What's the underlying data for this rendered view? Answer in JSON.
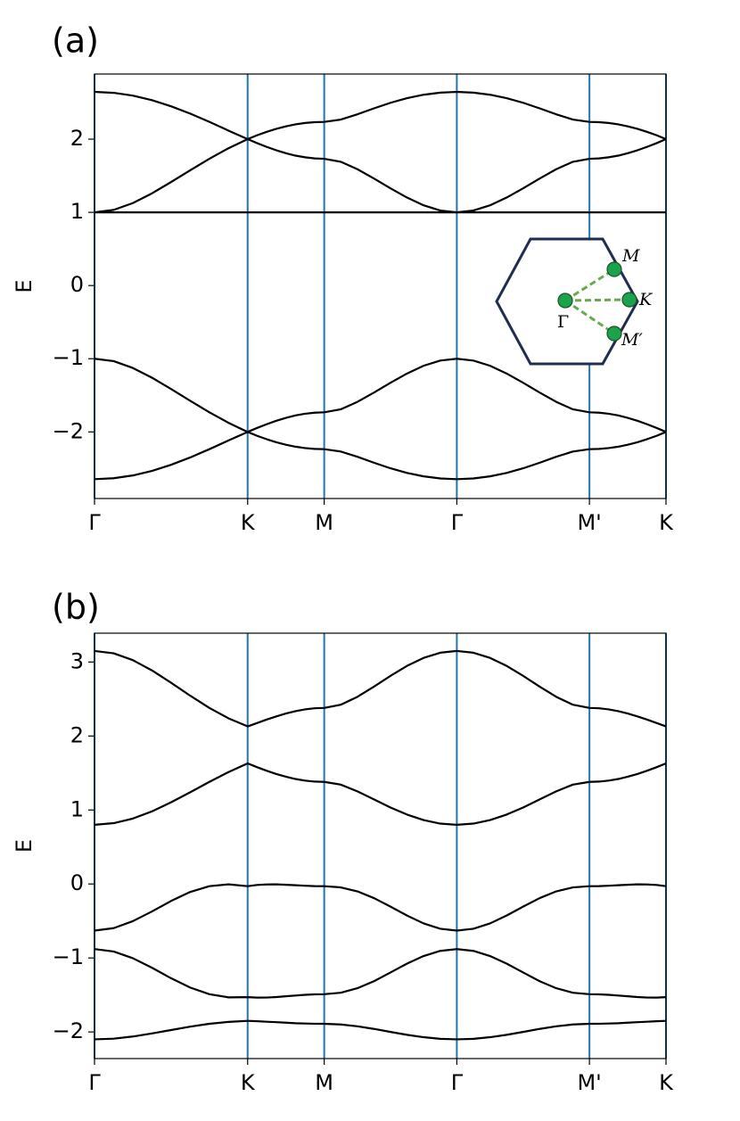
{
  "chart_data": [
    {
      "type": "line",
      "panel_label": "(a)",
      "ylabel": "E",
      "x": [
        0,
        0.125,
        0.25,
        0.375,
        0.5,
        0.625,
        0.75,
        0.875,
        1,
        1.0625,
        1.125,
        1.1875,
        1.25,
        1.3125,
        1.375,
        1.4375,
        1.5,
        1.608,
        1.717,
        1.825,
        1.933,
        2.041,
        2.149,
        2.258,
        2.366,
        2.474,
        2.583,
        2.691,
        2.799,
        2.907,
        3.015,
        3.124,
        3.232,
        3.295,
        3.357,
        3.42,
        3.482,
        3.545,
        3.607,
        3.67,
        3.732
      ],
      "series": [
        {
          "color": "#000000",
          "values": [
            2.646,
            2.633,
            2.595,
            2.533,
            2.449,
            2.349,
            2.236,
            2.117,
            2,
            2.054,
            2.1,
            2.141,
            2.175,
            2.202,
            2.221,
            2.232,
            2.236,
            2.268,
            2.34,
            2.421,
            2.497,
            2.56,
            2.607,
            2.636,
            2.646,
            2.636,
            2.607,
            2.56,
            2.497,
            2.421,
            2.34,
            2.268,
            2.236,
            2.232,
            2.221,
            2.202,
            2.175,
            2.141,
            2.1,
            2.054,
            2
          ]
        },
        {
          "color": "#000000",
          "values": [
            1,
            1.033,
            1.126,
            1.259,
            1.414,
            1.575,
            1.732,
            1.876,
            2,
            1.945,
            1.894,
            1.848,
            1.808,
            1.775,
            1.752,
            1.737,
            1.732,
            1.691,
            1.589,
            1.462,
            1.328,
            1.202,
            1.096,
            1.025,
            1,
            1.025,
            1.096,
            1.202,
            1.328,
            1.462,
            1.589,
            1.691,
            1.732,
            1.737,
            1.752,
            1.775,
            1.808,
            1.848,
            1.894,
            1.945,
            2
          ]
        },
        {
          "color": "#000000",
          "values": [
            1,
            1,
            1,
            1,
            1,
            1,
            1,
            1,
            1,
            1,
            1,
            1,
            1,
            1,
            1,
            1,
            1,
            1,
            1,
            1,
            1,
            1,
            1,
            1,
            1,
            1,
            1,
            1,
            1,
            1,
            1,
            1,
            1,
            1,
            1,
            1,
            1,
            1,
            1,
            1,
            1
          ]
        },
        {
          "color": "#000000",
          "values": [
            -1,
            -1.033,
            -1.126,
            -1.259,
            -1.414,
            -1.575,
            -1.732,
            -1.876,
            -2,
            -1.945,
            -1.894,
            -1.848,
            -1.808,
            -1.775,
            -1.752,
            -1.737,
            -1.732,
            -1.691,
            -1.589,
            -1.462,
            -1.328,
            -1.202,
            -1.096,
            -1.025,
            -1,
            -1.025,
            -1.096,
            -1.202,
            -1.328,
            -1.462,
            -1.589,
            -1.691,
            -1.732,
            -1.737,
            -1.752,
            -1.775,
            -1.808,
            -1.848,
            -1.894,
            -1.945,
            -2
          ]
        },
        {
          "color": "#000000",
          "values": [
            -2.646,
            -2.633,
            -2.595,
            -2.533,
            -2.449,
            -2.349,
            -2.236,
            -2.117,
            -2,
            -2.054,
            -2.1,
            -2.141,
            -2.175,
            -2.202,
            -2.221,
            -2.232,
            -2.236,
            -2.268,
            -2.34,
            -2.421,
            -2.497,
            -2.56,
            -2.607,
            -2.636,
            -2.646,
            -2.636,
            -2.607,
            -2.56,
            -2.497,
            -2.421,
            -2.34,
            -2.268,
            -2.236,
            -2.232,
            -2.221,
            -2.202,
            -2.175,
            -2.141,
            -2.1,
            -2.054,
            -2
          ]
        }
      ],
      "xlim": [
        0,
        3.732
      ],
      "xticks": [
        {
          "value": 0,
          "label": "Γ"
        },
        {
          "value": 1,
          "label": "K"
        },
        {
          "value": 1.5,
          "label": "M"
        },
        {
          "value": 2.366,
          "label": "Γ"
        },
        {
          "value": 3.232,
          "label": "M'"
        },
        {
          "value": 3.732,
          "label": "K"
        }
      ],
      "ylim": [
        -2.91,
        2.89
      ],
      "yticks": [
        {
          "value": -2,
          "label": "−2"
        },
        {
          "value": -1,
          "label": "−1"
        },
        0,
        1,
        2
      ],
      "xgrid": true,
      "grid_color": "#1f77b4",
      "inset": {
        "labels": [
          "M",
          "K",
          "Γ",
          "M′"
        ]
      }
    },
    {
      "type": "line",
      "panel_label": "(b)",
      "ylabel": "E",
      "x": [
        0,
        0.125,
        0.25,
        0.375,
        0.5,
        0.625,
        0.75,
        0.875,
        1,
        1.0625,
        1.125,
        1.1875,
        1.25,
        1.3125,
        1.375,
        1.4375,
        1.5,
        1.608,
        1.717,
        1.825,
        1.933,
        2.041,
        2.149,
        2.258,
        2.366,
        2.474,
        2.583,
        2.691,
        2.799,
        2.907,
        3.015,
        3.124,
        3.232,
        3.295,
        3.357,
        3.42,
        3.482,
        3.545,
        3.607,
        3.67,
        3.732
      ],
      "series": [
        {
          "color": "#000000",
          "values": [
            3.15,
            3.118,
            3.026,
            2.887,
            2.72,
            2.545,
            2.38,
            2.239,
            2.13,
            2.176,
            2.223,
            2.265,
            2.304,
            2.336,
            2.36,
            2.375,
            2.38,
            2.423,
            2.53,
            2.668,
            2.813,
            2.948,
            3.056,
            3.126,
            3.15,
            3.126,
            3.056,
            2.948,
            2.813,
            2.668,
            2.53,
            2.423,
            2.38,
            2.375,
            2.36,
            2.336,
            2.304,
            2.265,
            2.223,
            2.176,
            2.13
          ]
        },
        {
          "color": "#000000",
          "values": [
            0.8,
            0.822,
            0.884,
            0.981,
            1.104,
            1.24,
            1.38,
            1.513,
            1.63,
            1.578,
            1.53,
            1.486,
            1.45,
            1.419,
            1.397,
            1.384,
            1.38,
            1.343,
            1.252,
            1.143,
            1.034,
            0.938,
            0.864,
            0.816,
            0.8,
            0.816,
            0.864,
            0.938,
            1.034,
            1.143,
            1.252,
            1.343,
            1.38,
            1.384,
            1.397,
            1.419,
            1.45,
            1.486,
            1.53,
            1.578,
            1.63
          ]
        },
        {
          "color": "#000000",
          "values": [
            -0.63,
            -0.597,
            -0.503,
            -0.372,
            -0.23,
            -0.108,
            -0.03,
            -0.005,
            -0.03,
            -0.013,
            -0.006,
            -0.005,
            -0.011,
            -0.017,
            -0.024,
            -0.029,
            -0.03,
            -0.046,
            -0.1,
            -0.191,
            -0.306,
            -0.427,
            -0.533,
            -0.605,
            -0.63,
            -0.605,
            -0.533,
            -0.427,
            -0.306,
            -0.191,
            -0.1,
            -0.046,
            -0.03,
            -0.029,
            -0.024,
            -0.017,
            -0.011,
            -0.005,
            -0.006,
            -0.013,
            -0.03
          ]
        },
        {
          "color": "#000000",
          "values": [
            -0.88,
            -0.913,
            -1.003,
            -1.132,
            -1.274,
            -1.4,
            -1.49,
            -1.533,
            -1.53,
            -1.536,
            -1.535,
            -1.528,
            -1.518,
            -1.508,
            -1.498,
            -1.492,
            -1.49,
            -1.47,
            -1.409,
            -1.314,
            -1.196,
            -1.076,
            -0.974,
            -0.904,
            -0.88,
            -0.904,
            -0.974,
            -1.076,
            -1.196,
            -1.314,
            -1.409,
            -1.47,
            -1.49,
            -1.492,
            -1.498,
            -1.508,
            -1.518,
            -1.528,
            -1.535,
            -1.536,
            -1.53
          ]
        },
        {
          "color": "#000000",
          "values": [
            -2.1,
            -2.091,
            -2.062,
            -2.02,
            -1.974,
            -1.928,
            -1.89,
            -1.864,
            -1.85,
            -1.855,
            -1.862,
            -1.868,
            -1.875,
            -1.882,
            -1.886,
            -1.889,
            -1.89,
            -1.899,
            -1.924,
            -1.959,
            -2,
            -2.039,
            -2.071,
            -2.093,
            -2.1,
            -2.093,
            -2.071,
            -2.039,
            -2,
            -1.959,
            -1.924,
            -1.899,
            -1.89,
            -1.889,
            -1.886,
            -1.882,
            -1.875,
            -1.868,
            -1.862,
            -1.855,
            -1.85
          ]
        }
      ],
      "xlim": [
        0,
        3.732
      ],
      "xticks": [
        {
          "value": 0,
          "label": "Γ"
        },
        {
          "value": 1,
          "label": "K"
        },
        {
          "value": 1.5,
          "label": "M"
        },
        {
          "value": 2.366,
          "label": "Γ"
        },
        {
          "value": 3.232,
          "label": "M'"
        },
        {
          "value": 3.732,
          "label": "K"
        }
      ],
      "ylim": [
        -2.36,
        3.39
      ],
      "yticks": [
        {
          "value": -2,
          "label": "−2"
        },
        {
          "value": -1,
          "label": "−1"
        },
        0,
        1,
        2,
        3
      ],
      "xgrid": true,
      "grid_color": "#1f77b4"
    }
  ]
}
